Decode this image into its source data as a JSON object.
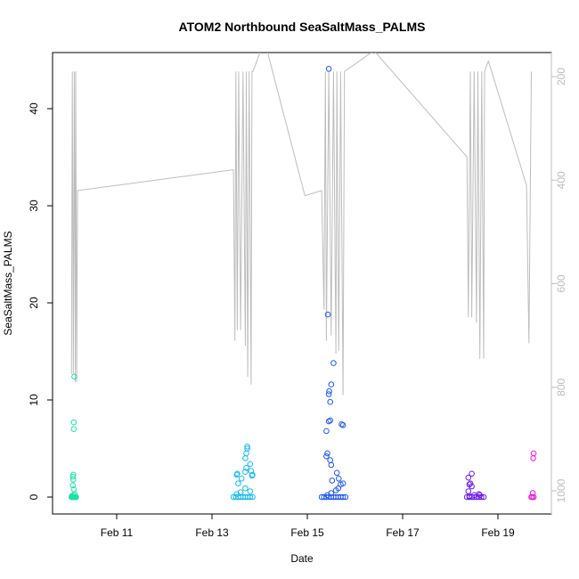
{
  "chart_data": {
    "type": "scatter",
    "title": "ATOM2 Northbound SeaSaltMass_PALMS",
    "xlabel": "Date",
    "ylabel": "SeaSaltMass_PALMS",
    "x_ticks": [
      "Feb 11",
      "Feb 13",
      "Feb 15",
      "Feb 17",
      "Feb 19"
    ],
    "x_range_days": [
      9.9,
      11.4
    ],
    "x_tick_days": [
      11,
      13,
      15,
      17,
      19
    ],
    "ylim": [
      -2,
      46
    ],
    "y_ticks": [
      0,
      10,
      20,
      30,
      40
    ],
    "y2_ticks": [
      200,
      400,
      600,
      800,
      1000
    ],
    "y2_range": [
      1018,
      155
    ],
    "axes_color": "#000000",
    "altitude_line_color": "#bdbdbd",
    "grid": false,
    "series": [
      {
        "color": "#1fe0a8",
        "points": [
          [
            10.05,
            0
          ],
          [
            10.07,
            0
          ],
          [
            10.08,
            0
          ],
          [
            10.09,
            0
          ],
          [
            10.1,
            0
          ],
          [
            10.11,
            0
          ],
          [
            10.12,
            0
          ],
          [
            10.13,
            0
          ],
          [
            10.14,
            0
          ],
          [
            10.15,
            0
          ],
          [
            10.06,
            0.1
          ],
          [
            10.09,
            0.2
          ],
          [
            10.12,
            0.3
          ],
          [
            10.1,
            0.8
          ],
          [
            10.08,
            1.2
          ],
          [
            10.09,
            1.8
          ],
          [
            10.08,
            2.1
          ],
          [
            10.09,
            2.3
          ],
          [
            10.1,
            7.0
          ],
          [
            10.1,
            7.7
          ],
          [
            10.11,
            12.4
          ]
        ]
      },
      {
        "color": "#17b9e8",
        "points": [
          [
            13.45,
            0
          ],
          [
            13.5,
            0
          ],
          [
            13.55,
            0
          ],
          [
            13.6,
            0
          ],
          [
            13.65,
            0
          ],
          [
            13.7,
            0
          ],
          [
            13.75,
            0
          ],
          [
            13.8,
            0
          ],
          [
            13.85,
            0
          ],
          [
            13.52,
            0.3
          ],
          [
            13.6,
            0.5
          ],
          [
            13.7,
            0.9
          ],
          [
            13.8,
            0.6
          ],
          [
            13.55,
            1.4
          ],
          [
            13.62,
            1.9
          ],
          [
            13.52,
            2.3
          ],
          [
            13.53,
            2.4
          ],
          [
            13.7,
            2.6
          ],
          [
            13.72,
            3.0
          ],
          [
            13.8,
            3.4
          ],
          [
            13.7,
            4.0
          ],
          [
            13.72,
            4.5
          ],
          [
            13.74,
            5.0
          ],
          [
            13.74,
            5.2
          ],
          [
            13.82,
            2.7
          ],
          [
            13.85,
            2.3
          ],
          [
            13.84,
            2.2
          ]
        ]
      },
      {
        "color": "#2159e6",
        "points": [
          [
            15.3,
            0
          ],
          [
            15.35,
            0
          ],
          [
            15.4,
            0
          ],
          [
            15.45,
            0
          ],
          [
            15.5,
            0
          ],
          [
            15.55,
            0
          ],
          [
            15.6,
            0
          ],
          [
            15.65,
            0
          ],
          [
            15.7,
            0
          ],
          [
            15.75,
            0
          ],
          [
            15.8,
            0
          ],
          [
            15.42,
            0.2
          ],
          [
            15.5,
            0.4
          ],
          [
            15.6,
            0.7
          ],
          [
            15.65,
            0.9
          ],
          [
            15.7,
            1.3
          ],
          [
            15.66,
            1.9
          ],
          [
            15.52,
            1.7
          ],
          [
            15.75,
            1.4
          ],
          [
            15.62,
            2.5
          ],
          [
            15.5,
            3.3
          ],
          [
            15.48,
            3.8
          ],
          [
            15.4,
            4.2
          ],
          [
            15.42,
            4.5
          ],
          [
            15.4,
            6.8
          ],
          [
            15.45,
            7.8
          ],
          [
            15.48,
            7.9
          ],
          [
            15.72,
            7.5
          ],
          [
            15.75,
            7.4
          ],
          [
            15.48,
            9.8
          ],
          [
            15.45,
            10.6
          ],
          [
            15.46,
            10.9
          ],
          [
            15.5,
            11.6
          ],
          [
            15.55,
            13.8
          ],
          [
            15.43,
            18.8
          ],
          [
            15.45,
            44.1
          ]
        ]
      },
      {
        "color": "#6a1ee6",
        "points": [
          [
            18.35,
            0
          ],
          [
            18.4,
            0
          ],
          [
            18.45,
            0
          ],
          [
            18.5,
            0
          ],
          [
            18.55,
            0
          ],
          [
            18.6,
            0
          ],
          [
            18.65,
            0
          ],
          [
            18.7,
            0
          ],
          [
            18.4,
            0.1
          ],
          [
            18.5,
            0.2
          ],
          [
            18.6,
            0.3
          ],
          [
            18.62,
            0.2
          ],
          [
            18.38,
            0.6
          ],
          [
            18.45,
            1.1
          ],
          [
            18.4,
            1.3
          ],
          [
            18.42,
            1.4
          ],
          [
            18.38,
            2.0
          ],
          [
            18.45,
            2.4
          ]
        ]
      },
      {
        "color": "#e815e0",
        "points": [
          [
            19.7,
            0
          ],
          [
            19.72,
            0
          ],
          [
            19.75,
            0
          ],
          [
            19.73,
            0.4
          ],
          [
            19.74,
            4.0
          ],
          [
            19.75,
            4.5
          ]
        ]
      }
    ],
    "altitude_profile": [
      [
        10.05,
        775
      ],
      [
        10.07,
        190
      ],
      [
        10.09,
        775
      ],
      [
        10.11,
        190
      ],
      [
        10.13,
        790
      ],
      [
        10.14,
        190
      ],
      [
        10.16,
        790
      ],
      [
        10.18,
        420
      ],
      [
        13.45,
        380
      ],
      [
        13.48,
        710
      ],
      [
        13.5,
        190
      ],
      [
        13.53,
        690
      ],
      [
        13.56,
        190
      ],
      [
        13.6,
        690
      ],
      [
        13.65,
        190
      ],
      [
        13.7,
        720
      ],
      [
        13.72,
        190
      ],
      [
        13.75,
        780
      ],
      [
        13.78,
        190
      ],
      [
        13.82,
        795
      ],
      [
        13.84,
        190
      ],
      [
        13.86,
        190
      ],
      [
        14.1,
        130
      ],
      [
        14.95,
        430
      ],
      [
        15.3,
        420
      ],
      [
        15.35,
        650
      ],
      [
        15.38,
        190
      ],
      [
        15.4,
        710
      ],
      [
        15.45,
        190
      ],
      [
        15.5,
        700
      ],
      [
        15.55,
        190
      ],
      [
        15.6,
        735
      ],
      [
        15.62,
        190
      ],
      [
        15.66,
        730
      ],
      [
        15.7,
        190
      ],
      [
        15.75,
        815
      ],
      [
        15.78,
        190
      ],
      [
        16.4,
        150
      ],
      [
        18.35,
        355
      ],
      [
        18.38,
        665
      ],
      [
        18.42,
        190
      ],
      [
        18.45,
        665
      ],
      [
        18.5,
        190
      ],
      [
        18.55,
        675
      ],
      [
        18.58,
        190
      ],
      [
        18.62,
        745
      ],
      [
        18.66,
        190
      ],
      [
        18.7,
        745
      ],
      [
        18.72,
        190
      ],
      [
        18.8,
        170
      ],
      [
        19.6,
        410
      ],
      [
        19.65,
        715
      ],
      [
        19.7,
        190
      ]
    ]
  }
}
